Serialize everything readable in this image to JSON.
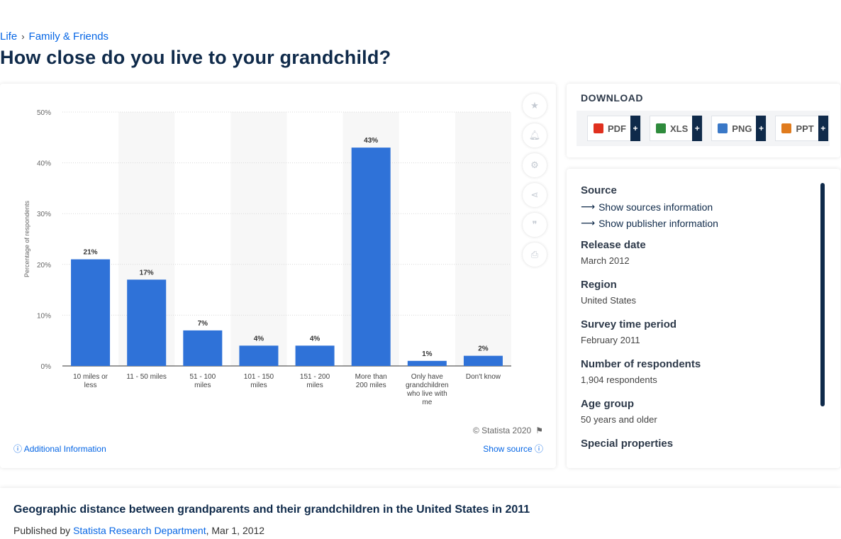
{
  "breadcrumb": {
    "item1": "Life",
    "item2": "Family & Friends"
  },
  "page_title": "How close do you live to your grandchild?",
  "chart_card": {
    "copyright": "© Statista 2020",
    "additional_info": "Additional Information",
    "show_source": "Show source",
    "tools": [
      "star-icon",
      "bell-icon",
      "gear-icon",
      "share-icon",
      "quote-icon",
      "print-icon"
    ]
  },
  "download": {
    "title": "DOWNLOAD",
    "buttons": [
      {
        "label": "PDF",
        "color": "#e0301e"
      },
      {
        "label": "XLS",
        "color": "#2e8b3c"
      },
      {
        "label": "PNG",
        "color": "#3a78c7"
      },
      {
        "label": "PPT",
        "color": "#e07b1e"
      }
    ]
  },
  "info": {
    "source_label": "Source",
    "show_sources": "Show sources information",
    "show_publisher": "Show publisher information",
    "release_label": "Release date",
    "release_value": "March 2012",
    "region_label": "Region",
    "region_value": "United States",
    "survey_label": "Survey time period",
    "survey_value": "February 2011",
    "respondents_label": "Number of respondents",
    "respondents_value": "1,904 respondents",
    "age_label": "Age group",
    "age_value": "50 years and older",
    "special_label": "Special properties"
  },
  "footer": {
    "title": "Geographic distance between grandparents and their grandchildren in the United States in 2011",
    "published_by": "Published by",
    "department": "Statista Research Department",
    "date": ", Mar 1, 2012"
  },
  "chart_data": {
    "type": "bar",
    "categories": [
      [
        "10 miles or",
        "less"
      ],
      [
        "11 - 50 miles"
      ],
      [
        "51 - 100",
        "miles"
      ],
      [
        "101 - 150",
        "miles"
      ],
      [
        "151 - 200",
        "miles"
      ],
      [
        "More than",
        "200 miles"
      ],
      [
        "Only have",
        "grandchildren",
        "who live with",
        "me"
      ],
      [
        "Don't know"
      ]
    ],
    "values": [
      21,
      17,
      7,
      4,
      4,
      43,
      1,
      2
    ],
    "value_labels": [
      "21%",
      "17%",
      "7%",
      "4%",
      "4%",
      "43%",
      "1%",
      "2%"
    ],
    "ylabel": "Percentage of respondents",
    "yticks": [
      "0%",
      "10%",
      "20%",
      "30%",
      "40%",
      "50%"
    ],
    "ylim": [
      0,
      50
    ],
    "bar_color": "#2f72d8",
    "grid": true
  }
}
